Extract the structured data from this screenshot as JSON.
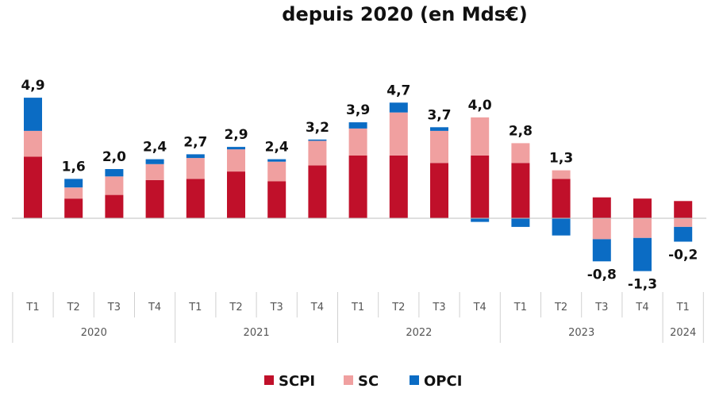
{
  "chart_data": {
    "type": "bar",
    "stacked": true,
    "title": "depuis 2020 (en Mds€)",
    "xlabel": "",
    "ylabel": "",
    "ylim": [
      -2.9,
      5.0
    ],
    "grid": false,
    "legend_position": "bottom",
    "categories": [
      "T1",
      "T2",
      "T3",
      "T4",
      "T1",
      "T2",
      "T3",
      "T4",
      "T1",
      "T2",
      "T3",
      "T4",
      "T1",
      "T2",
      "T3",
      "T4",
      "T1"
    ],
    "groups": [
      {
        "label": "2020",
        "count": 4
      },
      {
        "label": "2021",
        "count": 4
      },
      {
        "label": "2022",
        "count": 4
      },
      {
        "label": "2023",
        "count": 4
      },
      {
        "label": "2024",
        "count": 1
      }
    ],
    "totals": [
      "4,9",
      "1,6",
      "2,0",
      "2,4",
      "2,7",
      "2,9",
      "2,4",
      "3,2",
      "3,9",
      "4,7",
      "3,7",
      "4,0",
      "2,8",
      "1,3",
      "-0,8",
      "-1,3",
      "-0,2"
    ],
    "series": [
      {
        "name": "SCPI",
        "color": "#c0102a",
        "values": [
          2.5,
          0.8,
          0.95,
          1.55,
          1.6,
          1.9,
          1.5,
          2.15,
          2.55,
          2.55,
          2.25,
          2.55,
          2.25,
          1.6,
          0.85,
          0.8,
          0.7
        ]
      },
      {
        "name": "SC",
        "color": "#f0a0a0",
        "values": [
          1.05,
          0.45,
          0.75,
          0.65,
          0.85,
          0.9,
          0.8,
          1.0,
          1.1,
          1.75,
          1.3,
          1.55,
          0.8,
          0.35,
          -0.85,
          -0.8,
          -0.35
        ]
      },
      {
        "name": "OPCI",
        "color": "#0b6cc4",
        "values": [
          1.35,
          0.35,
          0.3,
          0.2,
          0.15,
          0.1,
          0.1,
          0.05,
          0.25,
          0.4,
          0.15,
          -0.15,
          -0.35,
          -0.7,
          -0.9,
          -1.35,
          -0.6
        ]
      }
    ]
  }
}
